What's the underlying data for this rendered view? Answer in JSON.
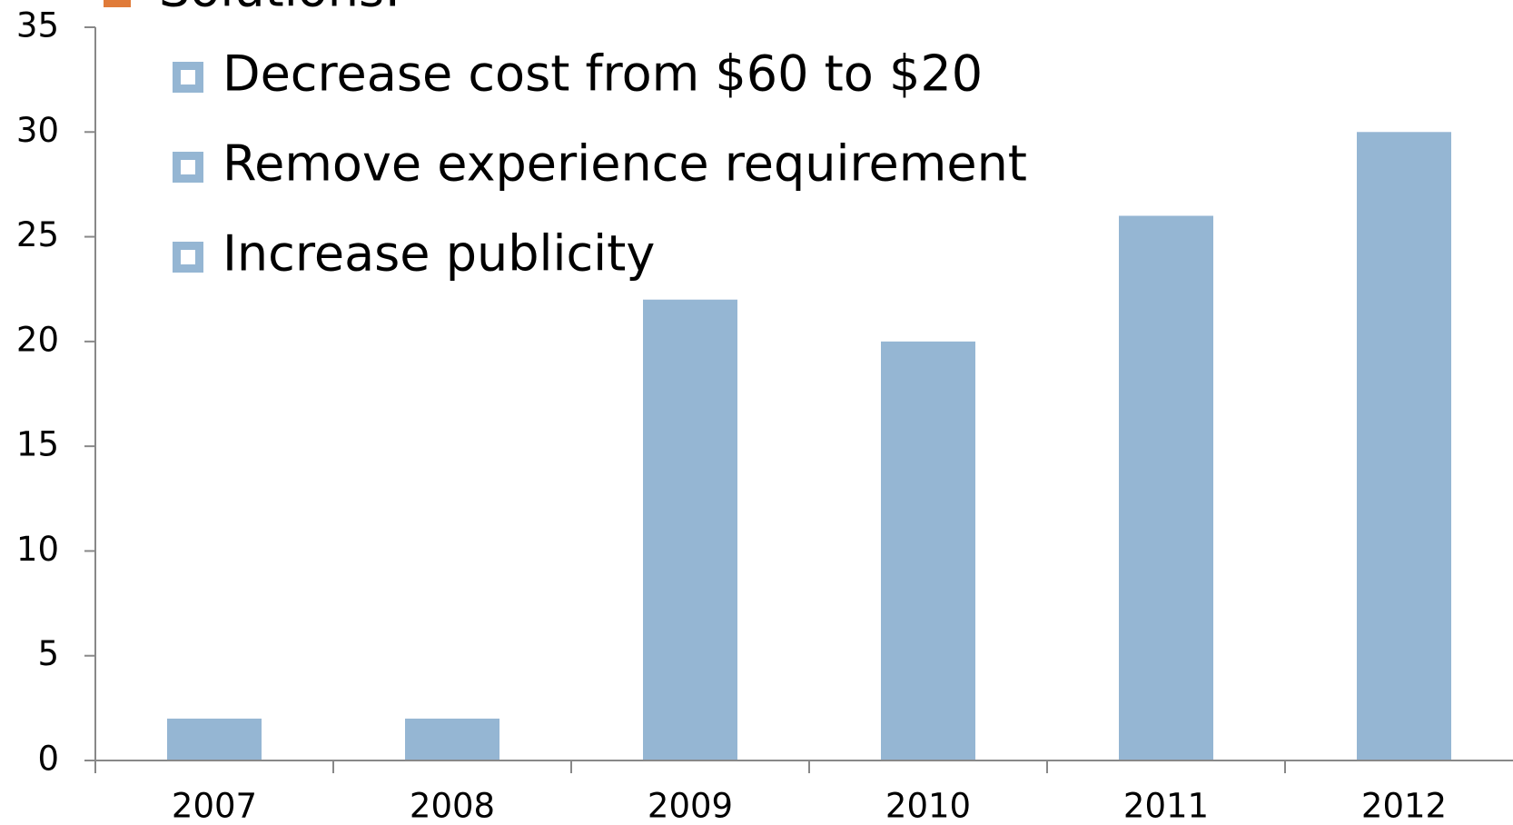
{
  "chart_data": {
    "type": "bar",
    "title": "Solutions:",
    "annotations": [
      "Decrease cost from $60 to $20",
      "Remove experience requirement",
      "Increase publicity"
    ],
    "categories": [
      "2007",
      "2008",
      "2009",
      "2010",
      "2011",
      "2012"
    ],
    "values": [
      2,
      2,
      22,
      20,
      26,
      30
    ],
    "color": "#95b6d3",
    "ylim": [
      0,
      35
    ],
    "yticks": [
      0,
      5,
      10,
      15,
      20,
      25,
      30,
      35
    ],
    "grid": false
  }
}
